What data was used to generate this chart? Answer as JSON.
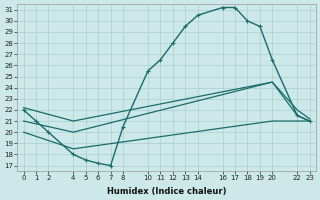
{
  "xlabel": "Humidex (Indice chaleur)",
  "background_color": "#cce8e8",
  "grid_color": "#aacfcf",
  "line_color": "#1a6b6b",
  "xlim": [
    -0.5,
    23.5
  ],
  "ylim": [
    16.5,
    31.5
  ],
  "xticks": [
    0,
    1,
    2,
    4,
    5,
    6,
    7,
    8,
    10,
    11,
    12,
    13,
    14,
    16,
    17,
    18,
    19,
    20,
    22,
    23
  ],
  "yticks": [
    17,
    18,
    19,
    20,
    21,
    22,
    23,
    24,
    25,
    26,
    27,
    28,
    29,
    30,
    31
  ],
  "line1_x": [
    0,
    1,
    2,
    4,
    5,
    6,
    7,
    8,
    10,
    11,
    12,
    13,
    14,
    16,
    17,
    18,
    19,
    20,
    22,
    23
  ],
  "line1_y": [
    22,
    21,
    20,
    18,
    17.5,
    17.2,
    17.0,
    20.5,
    25.5,
    26.5,
    28.0,
    29.5,
    30.5,
    31.2,
    31.2,
    30.0,
    29.5,
    26.5,
    21.5,
    21.0
  ],
  "line2_x": [
    0,
    4,
    20,
    22,
    23
  ],
  "line2_y": [
    22.2,
    21.0,
    24.5,
    21.5,
    21.0
  ],
  "line3_x": [
    0,
    4,
    20,
    22,
    23
  ],
  "line3_y": [
    21.0,
    20.0,
    24.5,
    22.0,
    21.2
  ],
  "line4_x": [
    0,
    4,
    20,
    23
  ],
  "line4_y": [
    20.0,
    18.5,
    21.0,
    21.0
  ]
}
